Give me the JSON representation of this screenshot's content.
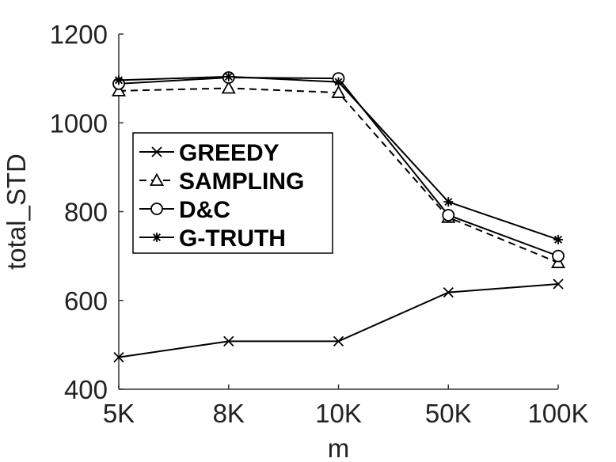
{
  "chart_data": {
    "type": "line",
    "title": "",
    "xlabel": "m",
    "ylabel": "total_STD",
    "categories": [
      "5K",
      "8K",
      "10K",
      "50K",
      "100K"
    ],
    "ylim": [
      400,
      1200
    ],
    "yticks": [
      400,
      600,
      800,
      1000,
      1200
    ],
    "grid": false,
    "legend_position": "upper-left",
    "series": [
      {
        "name": "GREEDY",
        "marker": "x",
        "dash": "solid",
        "values": [
          472,
          508,
          508,
          618,
          637
        ]
      },
      {
        "name": "SAMPLING",
        "marker": "triangle",
        "dash": "dashed",
        "values": [
          1072,
          1078,
          1068,
          787,
          685
        ]
      },
      {
        "name": "D&C",
        "marker": "circle",
        "dash": "solid",
        "values": [
          1088,
          1102,
          1100,
          792,
          700
        ]
      },
      {
        "name": "G-TRUTH",
        "marker": "star",
        "dash": "solid",
        "values": [
          1096,
          1104,
          1092,
          822,
          737
        ]
      }
    ]
  }
}
